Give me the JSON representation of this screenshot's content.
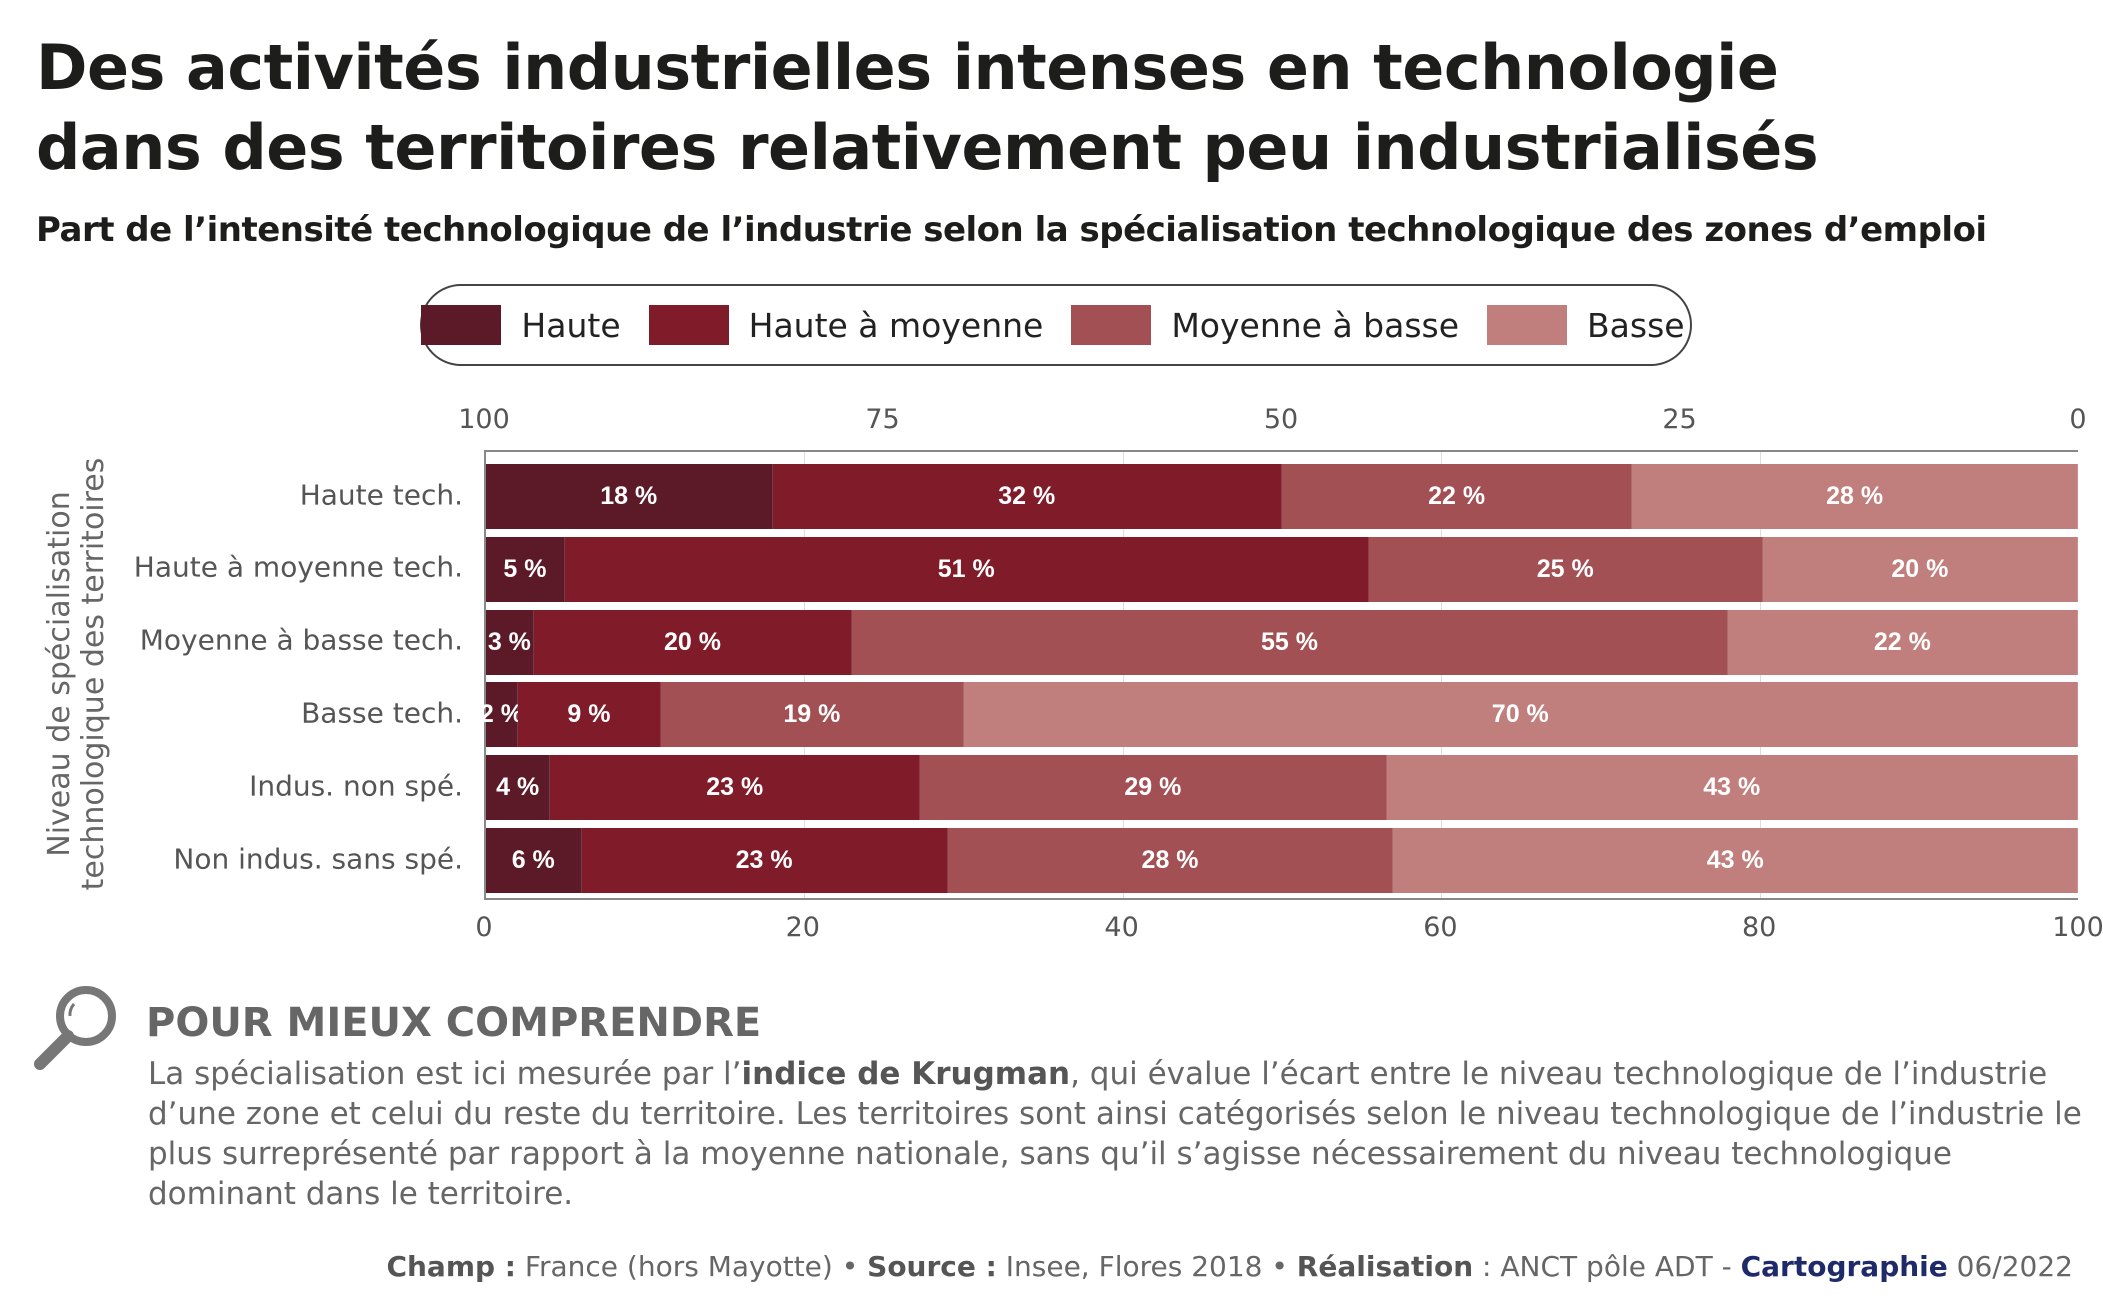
{
  "title_line1": "Des activités industrielles intenses en technologie",
  "title_line2": "dans des territoires relativement peu industrialisés",
  "subtitle": "Part de l’intensité technologique de l’industrie selon la spécialisation technologique des zones d’emploi",
  "chart_data": {
    "type": "bar",
    "orientation": "horizontal",
    "stacked": true,
    "categories": [
      "Haute tech.",
      "Haute à moyenne tech.",
      "Moyenne à basse tech.",
      "Basse tech.",
      "Indus. non spé.",
      "Non indus. sans spé."
    ],
    "series": [
      {
        "name": "Haute",
        "color": "#5c1a28",
        "values": [
          18,
          5,
          3,
          2,
          4,
          6
        ],
        "labels": [
          "18 %",
          "5 %",
          "3 %",
          "2 %",
          "4 %",
          "6 %"
        ]
      },
      {
        "name": "Haute à moyenne",
        "color": "#801b2a",
        "values": [
          32,
          51,
          20,
          9,
          23,
          23
        ],
        "labels": [
          "32 %",
          "51 %",
          "20 %",
          "9  %",
          "23 %",
          "23 %"
        ]
      },
      {
        "name": "Moyenne à basse",
        "color": "#a25054",
        "values": [
          22,
          25,
          55,
          19,
          29,
          28
        ],
        "labels": [
          "22 %",
          "25 %",
          "55 %",
          "19 %",
          "29 %",
          "28 %"
        ]
      },
      {
        "name": "Basse",
        "color": "#c07f7d",
        "values": [
          28,
          20,
          22,
          70,
          43,
          43
        ],
        "labels": [
          "28 %",
          "20 %",
          "22 %",
          "70 %",
          "43 %",
          "43 %"
        ]
      }
    ],
    "ylabel_line1": "Niveau de spécialisation",
    "ylabel_line2": "technologique des territoires",
    "xlim": [
      0,
      100
    ],
    "x_ticks_bottom": [
      "0",
      "20",
      "40",
      "60",
      "80",
      "100"
    ],
    "x_ticks_top": [
      "100",
      "75",
      "50",
      "25",
      "0"
    ],
    "grid": true,
    "legend_position": "top"
  },
  "note": {
    "heading": "POUR MIEUX COMPRENDRE",
    "icon": "magnifier-icon",
    "text_before": "La spécialisation est ici mesurée par l’",
    "text_bold": "indice de Krugman",
    "text_after": ", qui évalue l’écart entre le niveau technologique de l’industrie d’une zone et celui du reste du territoire. Les territoires sont ainsi catégorisés selon le niveau technologique de l’industrie le plus surreprésenté par rapport à la moyenne nationale, sans qu’il s’agisse nécessairement du niveau technologique dominant dans le territoire."
  },
  "footer": {
    "champ_label": "Champ :",
    "champ_value": " France (hors Mayotte) • ",
    "source_label": "Source :",
    "source_value": " Insee, Flores 2018 • ",
    "realisation_label": "Réalisation",
    "realisation_value": " : ANCT pôle ADT - ",
    "cartographie": "Cartographie",
    "date": " 06/2022"
  }
}
